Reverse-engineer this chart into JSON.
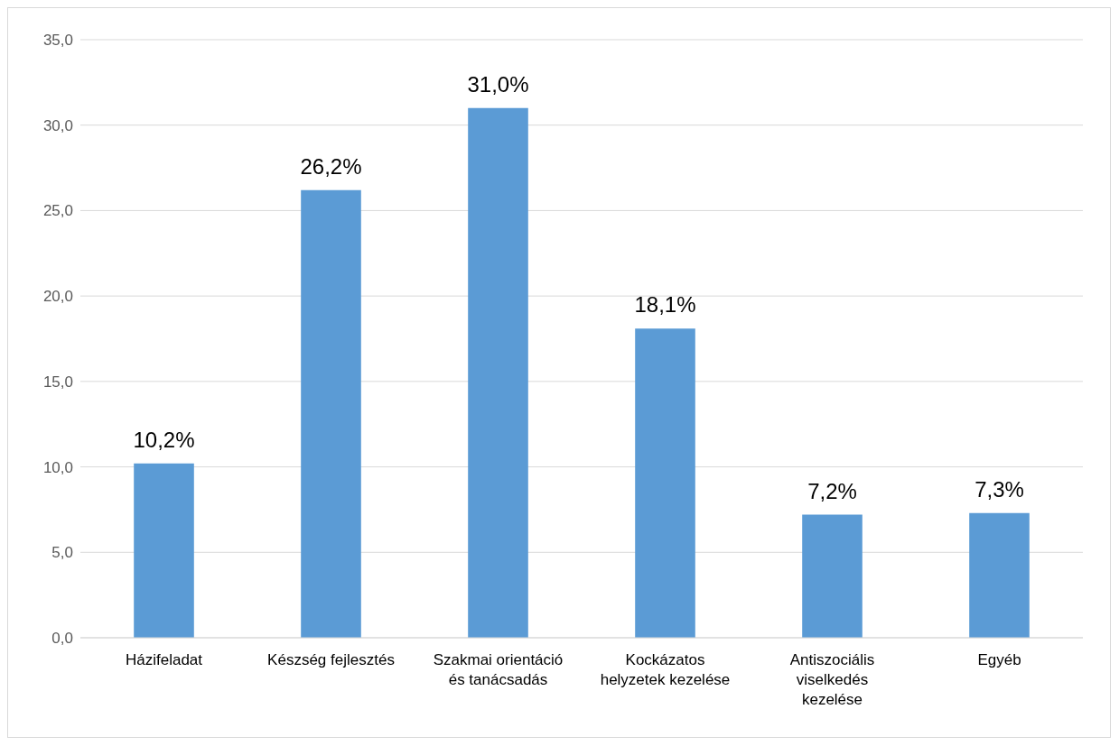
{
  "chart_data": {
    "type": "bar",
    "categories": [
      "Házifeladat",
      "Készség fejlesztés",
      "Szakmai orientáció és tanácsadás",
      "Kockázatos helyzetek kezelése",
      "Antiszociális viselkedés kezelése",
      "Egyéb"
    ],
    "values": [
      10.2,
      26.2,
      31.0,
      18.1,
      7.2,
      7.3
    ],
    "value_labels": [
      "10,2%",
      "26,2%",
      "31,0%",
      "18,1%",
      "7,2%",
      "7,3%"
    ],
    "color": "#5b9bd5",
    "ylim": [
      0,
      35
    ],
    "yticks": [
      {
        "value": 0,
        "label": "0,0"
      },
      {
        "value": 5,
        "label": "5,0"
      },
      {
        "value": 10,
        "label": "10,0"
      },
      {
        "value": 15,
        "label": "15,0"
      },
      {
        "value": 20,
        "label": "20,0"
      },
      {
        "value": 25,
        "label": "25,0"
      },
      {
        "value": 30,
        "label": "30,0"
      },
      {
        "value": 35,
        "label": "35,0"
      }
    ],
    "grid": "y"
  }
}
